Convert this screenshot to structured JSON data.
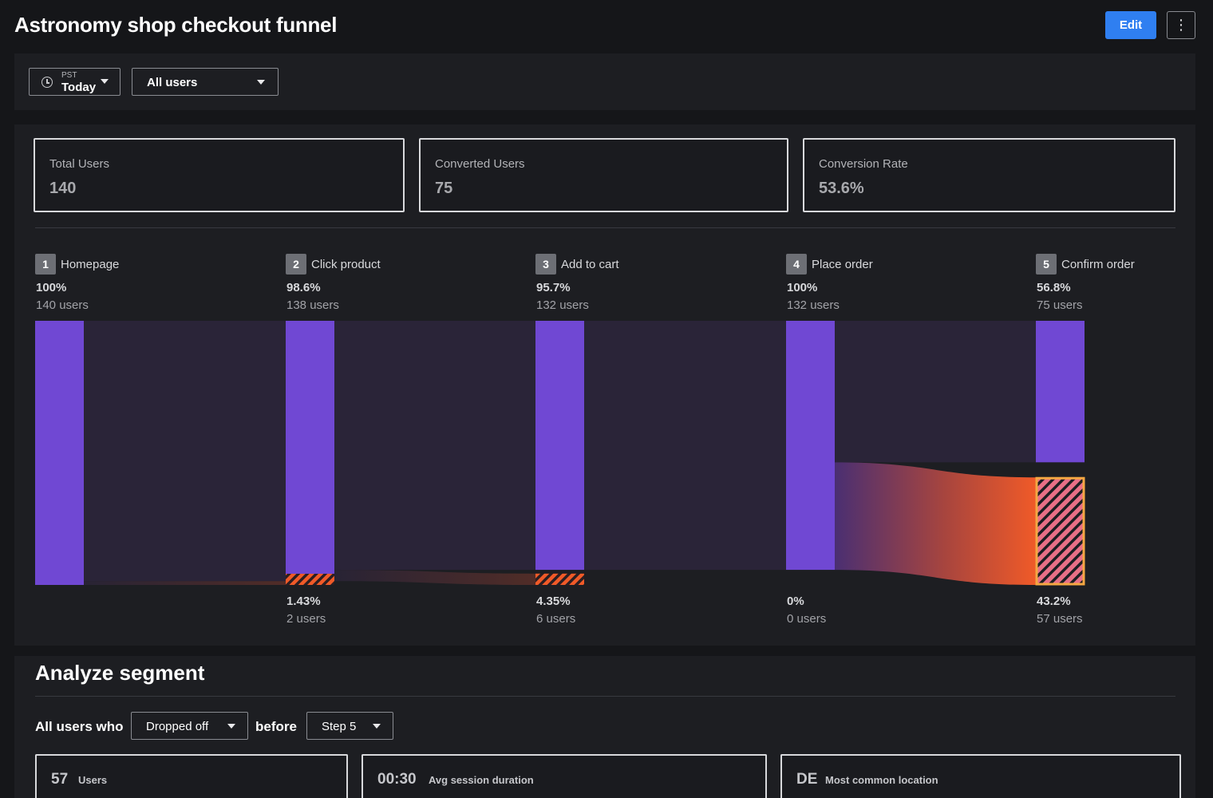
{
  "header": {
    "title": "Astronomy shop checkout funnel",
    "edit_label": "Edit",
    "more_icon": "more-vertical-icon"
  },
  "filters": {
    "timezone": "PST",
    "time_range": "Today",
    "user_filter": "All users"
  },
  "kpis": [
    {
      "label": "Total Users",
      "value": "140"
    },
    {
      "label": "Converted Users",
      "value": "75"
    },
    {
      "label": "Conversion Rate",
      "value": "53.6%"
    }
  ],
  "funnel": {
    "steps": [
      {
        "number": "1",
        "name": "Homepage",
        "percent": "100%",
        "users": "140 users",
        "count": 140
      },
      {
        "number": "2",
        "name": "Click product",
        "percent": "98.6%",
        "users": "138 users",
        "count": 138
      },
      {
        "number": "3",
        "name": "Add to cart",
        "percent": "95.7%",
        "users": "132 users",
        "count": 132
      },
      {
        "number": "4",
        "name": "Place order",
        "percent": "100%",
        "users": "132 users",
        "count": 132
      },
      {
        "number": "5",
        "name": "Confirm order",
        "percent": "56.8%",
        "users": "75 users",
        "count": 75
      }
    ],
    "dropoffs": [
      {
        "percent": "1.43%",
        "users": "2 users",
        "count": 2
      },
      {
        "percent": "4.35%",
        "users": "6 users",
        "count": 6
      },
      {
        "percent": "0%",
        "users": "0 users",
        "count": 0
      },
      {
        "percent": "43.2%",
        "users": "57 users",
        "count": 57
      }
    ],
    "colors": {
      "bar": "#7048d3",
      "flow": "#2a2438",
      "drop": "#f05a28",
      "drop_highlight": "#f5a742"
    }
  },
  "segment": {
    "title": "Analyze segment",
    "prefix": "All users who",
    "action": "Dropped off",
    "connector": "before",
    "step": "Step 5",
    "stats": [
      {
        "value": "57",
        "label": "Users"
      },
      {
        "value": "00:30",
        "label": "Avg session duration"
      },
      {
        "value": "DE",
        "label": "Most common location"
      }
    ]
  }
}
